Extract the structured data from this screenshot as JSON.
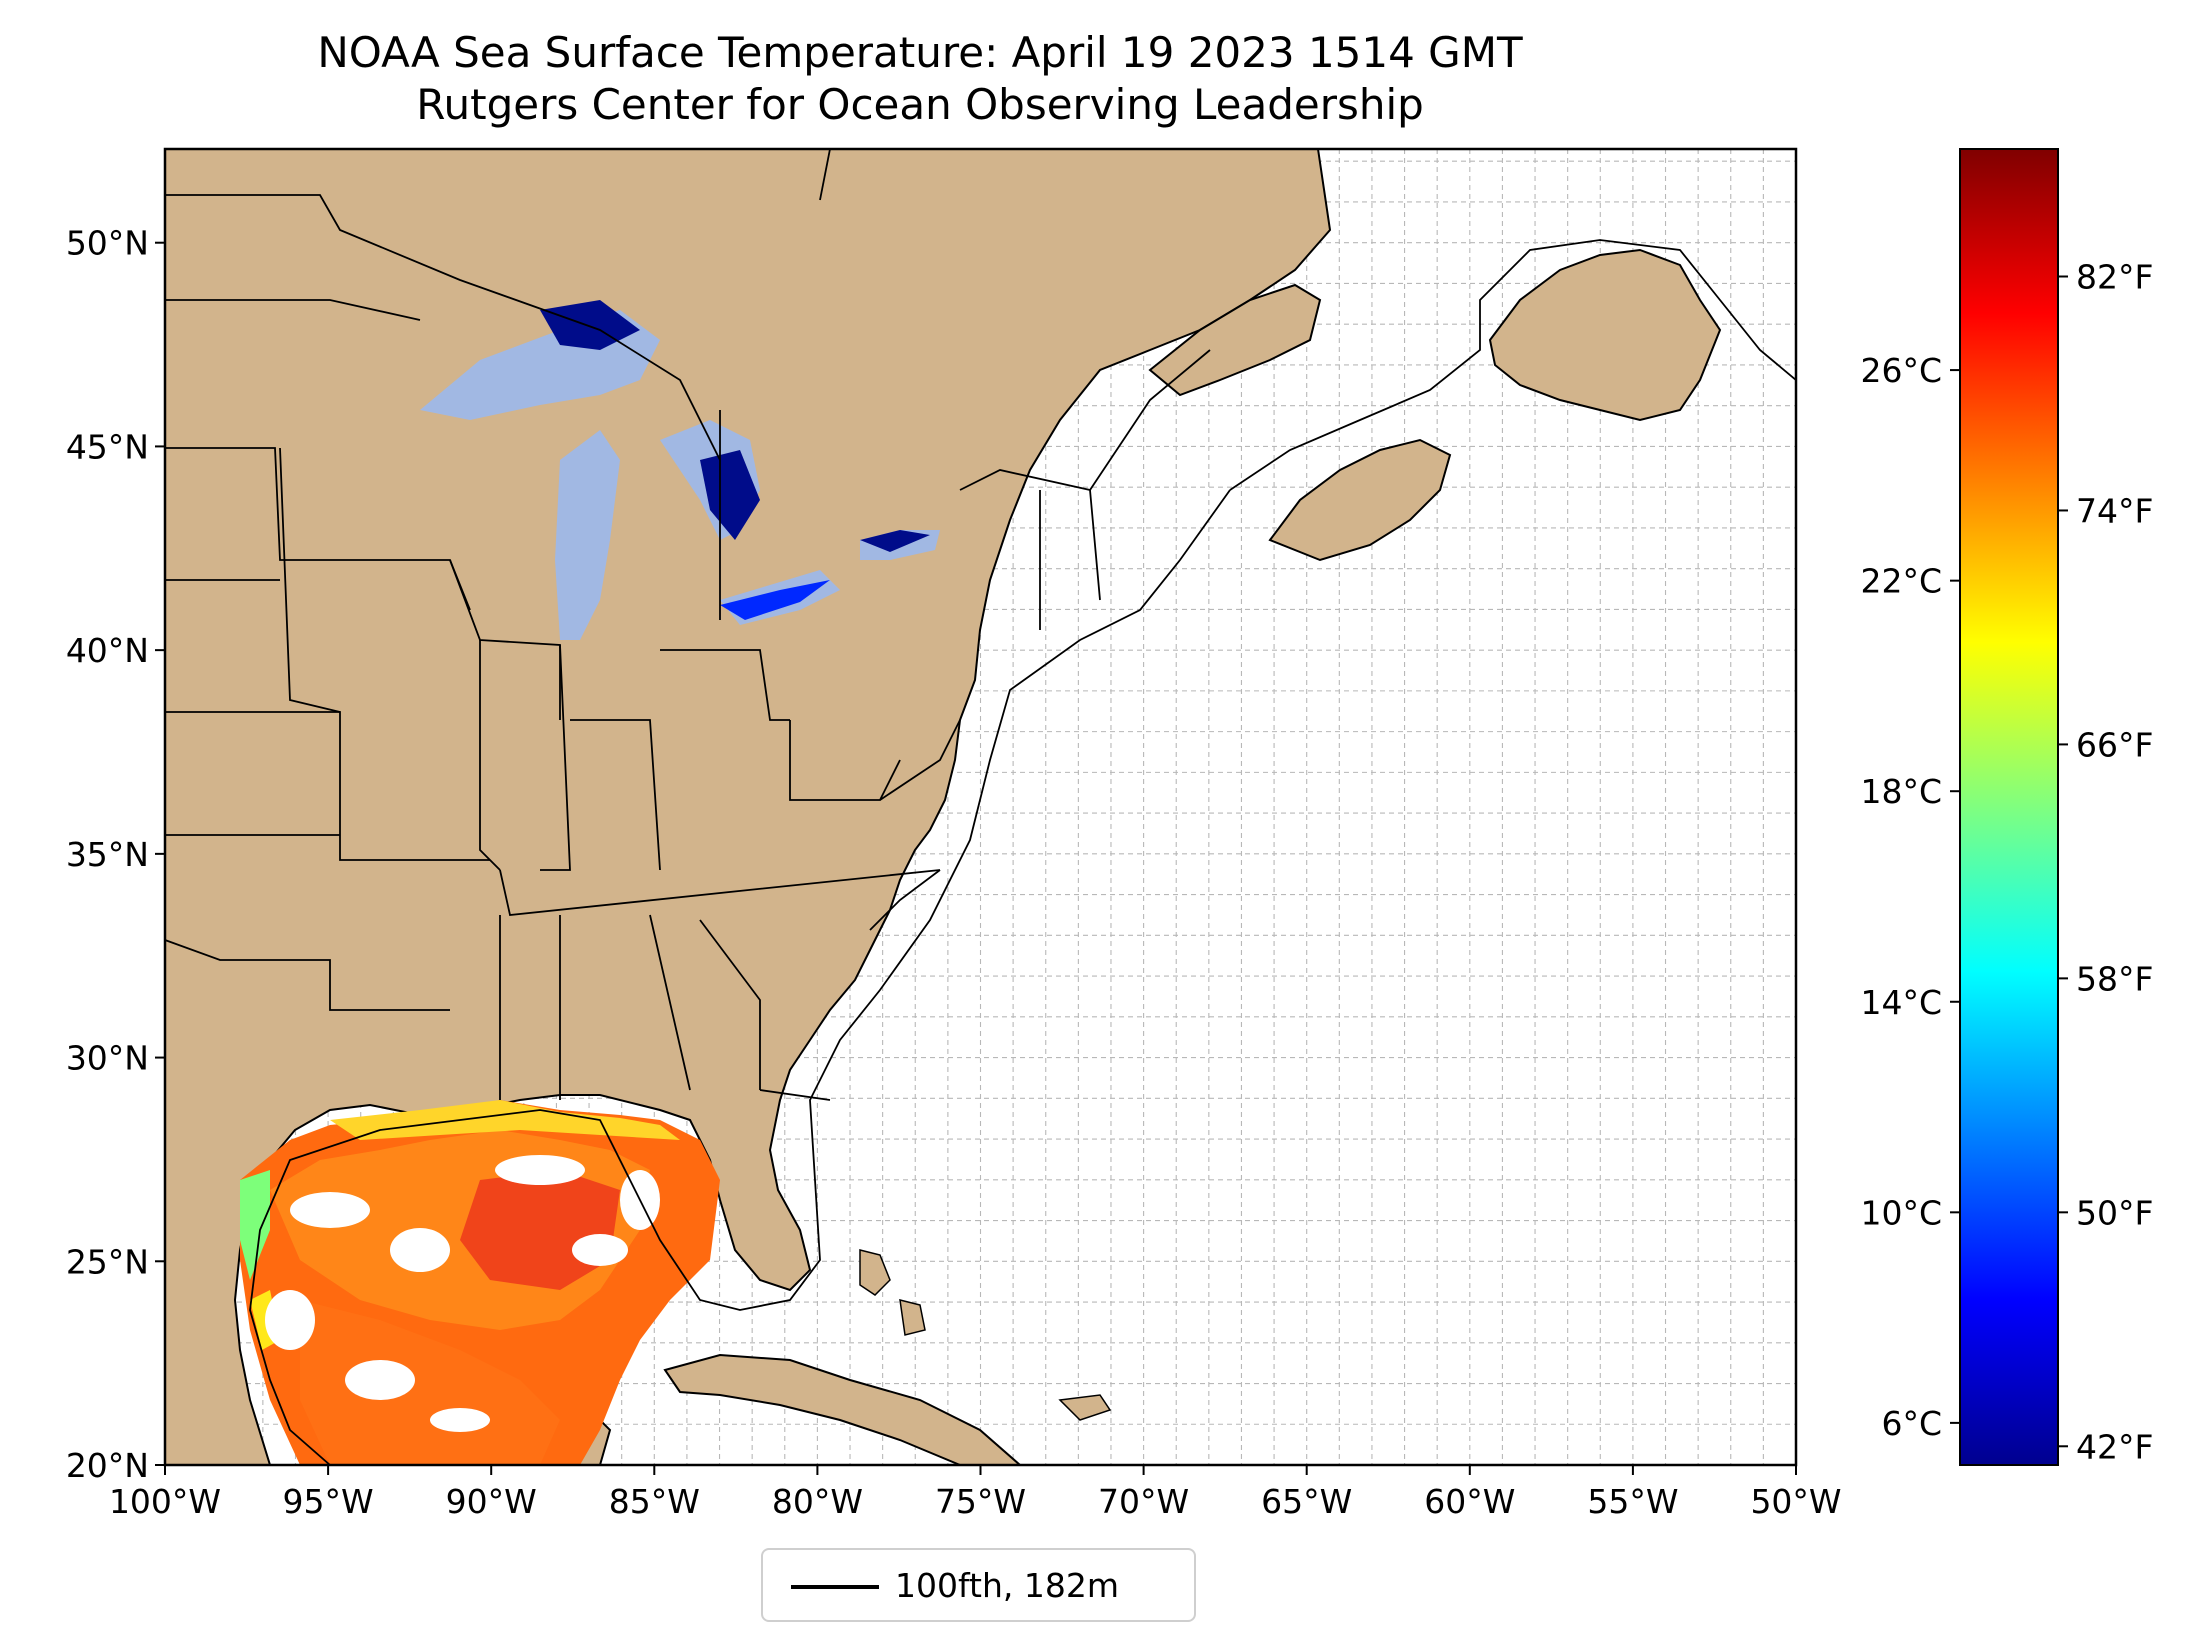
{
  "title": "NOAA Sea Surface Temperature: April 19 2023 1514 GMT",
  "subtitle": "Rutgers Center for Ocean Observing Leadership",
  "map": {
    "lon_range": [
      -100,
      -50
    ],
    "lat_range": [
      20,
      52.3
    ],
    "land_color": "#d2b48c",
    "ocean_color": "#ffffff",
    "lake_color": "#a1b8e3",
    "grid": "on",
    "lon_ticks": [
      "100°W",
      "95°W",
      "90°W",
      "85°W",
      "80°W",
      "75°W",
      "70°W",
      "65°W",
      "60°W",
      "55°W",
      "50°W"
    ],
    "lat_ticks": [
      "20°N",
      "25°N",
      "30°N",
      "35°N",
      "40°N",
      "45°N",
      "50°N"
    ]
  },
  "colorbar": {
    "colormap": "jet",
    "celsius_labels": [
      "6°C",
      "10°C",
      "14°C",
      "18°C",
      "22°C",
      "26°C"
    ],
    "fahrenheit_labels": [
      "42°F",
      "50°F",
      "58°F",
      "66°F",
      "74°F",
      "82°F"
    ],
    "celsius_range": [
      5.2,
      30.2
    ]
  },
  "legend": {
    "label": "100fth, 182m",
    "placement": "bottom-center"
  }
}
